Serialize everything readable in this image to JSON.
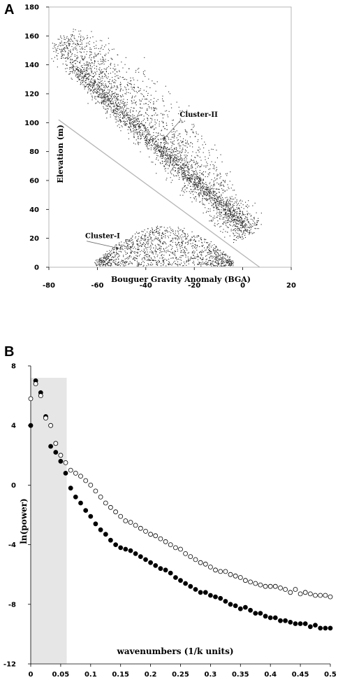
{
  "chart_data": [
    {
      "panel_label": "A",
      "type": "scatter",
      "xlabel": "Bouguer Gravity Anomaly (BGA)",
      "ylabel": "Elevation (m)",
      "xlim": [
        -80,
        20
      ],
      "ylim": [
        0,
        180
      ],
      "xticks": [
        "-80",
        "-60",
        "-40",
        "-20",
        "0",
        "20"
      ],
      "yticks": [
        "0",
        "20",
        "40",
        "60",
        "80",
        "100",
        "120",
        "140",
        "160",
        "180"
      ],
      "color": "#222222",
      "divider_line": {
        "x": [
          -76,
          7
        ],
        "y": [
          102,
          0
        ],
        "color": "#b5b5b5"
      },
      "annotations": [
        {
          "text": "Cluster-II",
          "label_at": [
            -26,
            104
          ],
          "arrow_to": [
            -33,
            88
          ]
        },
        {
          "text": "Cluster-I",
          "label_at": [
            -65,
            20
          ],
          "arrow_to": [
            -51,
            13
          ]
        }
      ],
      "clusters": [
        {
          "name": "Cluster-I",
          "description": "dense arc of points along the bottom, BGA -60 to -5, elevation 0 to 30"
        },
        {
          "name": "Cluster-II",
          "description": "broad diagonal band from BGA -78/elev 160 down to BGA 5/elev 15"
        }
      ]
    },
    {
      "panel_label": "B",
      "type": "scatter",
      "xlabel": "wavenumbers (1/k units)",
      "ylabel": "ln(power)",
      "xlim": [
        0,
        0.5
      ],
      "ylim": [
        -12,
        8
      ],
      "xticks": [
        "0",
        "0.05",
        "0.1",
        "0.15",
        "0.2",
        "0.25",
        "0.3",
        "0.35",
        "0.4",
        "0.45",
        "0.5"
      ],
      "yticks": [
        "8",
        "4",
        "0",
        "-4",
        "-8",
        "-12"
      ],
      "shaded_region": {
        "x": [
          0,
          0.06
        ],
        "color": "#e6e6e6"
      },
      "series": [
        {
          "marker": "filled",
          "x": [
            0,
            0.0083,
            0.0167,
            0.025,
            0.0333,
            0.0417,
            0.05,
            0.0583,
            0.0667,
            0.075,
            0.0833,
            0.0917,
            0.1,
            0.1083,
            0.1167,
            0.125,
            0.1333,
            0.1417,
            0.15,
            0.1583,
            0.1667,
            0.175,
            0.1833,
            0.1917,
            0.2,
            0.2083,
            0.2167,
            0.225,
            0.2333,
            0.2417,
            0.25,
            0.2583,
            0.2667,
            0.275,
            0.2833,
            0.2917,
            0.3,
            0.3083,
            0.3167,
            0.325,
            0.3333,
            0.3417,
            0.35,
            0.3583,
            0.3667,
            0.375,
            0.3833,
            0.3917,
            0.4,
            0.4083,
            0.4167,
            0.425,
            0.4333,
            0.4417,
            0.45,
            0.4583,
            0.4667,
            0.475,
            0.4833,
            0.4917,
            0.5
          ],
          "y": [
            4.0,
            7.0,
            6.2,
            4.6,
            2.6,
            2.2,
            1.6,
            0.8,
            -0.2,
            -0.8,
            -1.2,
            -1.7,
            -2.1,
            -2.6,
            -3.0,
            -3.3,
            -3.7,
            -4.0,
            -4.2,
            -4.3,
            -4.4,
            -4.6,
            -4.8,
            -5.0,
            -5.2,
            -5.4,
            -5.6,
            -5.7,
            -5.9,
            -6.2,
            -6.4,
            -6.6,
            -6.8,
            -7.0,
            -7.2,
            -7.2,
            -7.4,
            -7.5,
            -7.6,
            -7.8,
            -8.0,
            -8.1,
            -8.3,
            -8.2,
            -8.4,
            -8.6,
            -8.6,
            -8.8,
            -8.9,
            -8.9,
            -9.1,
            -9.1,
            -9.2,
            -9.3,
            -9.3,
            -9.3,
            -9.5,
            -9.4,
            -9.6,
            -9.6,
            -9.6
          ]
        },
        {
          "marker": "open",
          "x": [
            0,
            0.0083,
            0.0167,
            0.025,
            0.0333,
            0.0417,
            0.05,
            0.0583,
            0.0667,
            0.075,
            0.0833,
            0.0917,
            0.1,
            0.1083,
            0.1167,
            0.125,
            0.1333,
            0.1417,
            0.15,
            0.1583,
            0.1667,
            0.175,
            0.1833,
            0.1917,
            0.2,
            0.2083,
            0.2167,
            0.225,
            0.2333,
            0.2417,
            0.25,
            0.2583,
            0.2667,
            0.275,
            0.2833,
            0.2917,
            0.3,
            0.3083,
            0.3167,
            0.325,
            0.3333,
            0.3417,
            0.35,
            0.3583,
            0.3667,
            0.375,
            0.3833,
            0.3917,
            0.4,
            0.4083,
            0.4167,
            0.425,
            0.4333,
            0.4417,
            0.45,
            0.4583,
            0.4667,
            0.475,
            0.4833,
            0.4917,
            0.5
          ],
          "y": [
            5.8,
            6.8,
            6.0,
            4.5,
            4.0,
            2.8,
            2.0,
            1.5,
            1.0,
            0.8,
            0.6,
            0.3,
            0.0,
            -0.4,
            -0.8,
            -1.2,
            -1.5,
            -1.8,
            -2.1,
            -2.4,
            -2.5,
            -2.7,
            -2.9,
            -3.1,
            -3.3,
            -3.4,
            -3.6,
            -3.8,
            -4.0,
            -4.2,
            -4.3,
            -4.6,
            -4.8,
            -5.0,
            -5.2,
            -5.3,
            -5.5,
            -5.7,
            -5.8,
            -5.8,
            -6.0,
            -6.1,
            -6.2,
            -6.4,
            -6.5,
            -6.6,
            -6.7,
            -6.8,
            -6.8,
            -6.8,
            -6.9,
            -7.0,
            -7.2,
            -7.0,
            -7.3,
            -7.2,
            -7.3,
            -7.4,
            -7.4,
            -7.4,
            -7.5
          ]
        }
      ]
    }
  ]
}
